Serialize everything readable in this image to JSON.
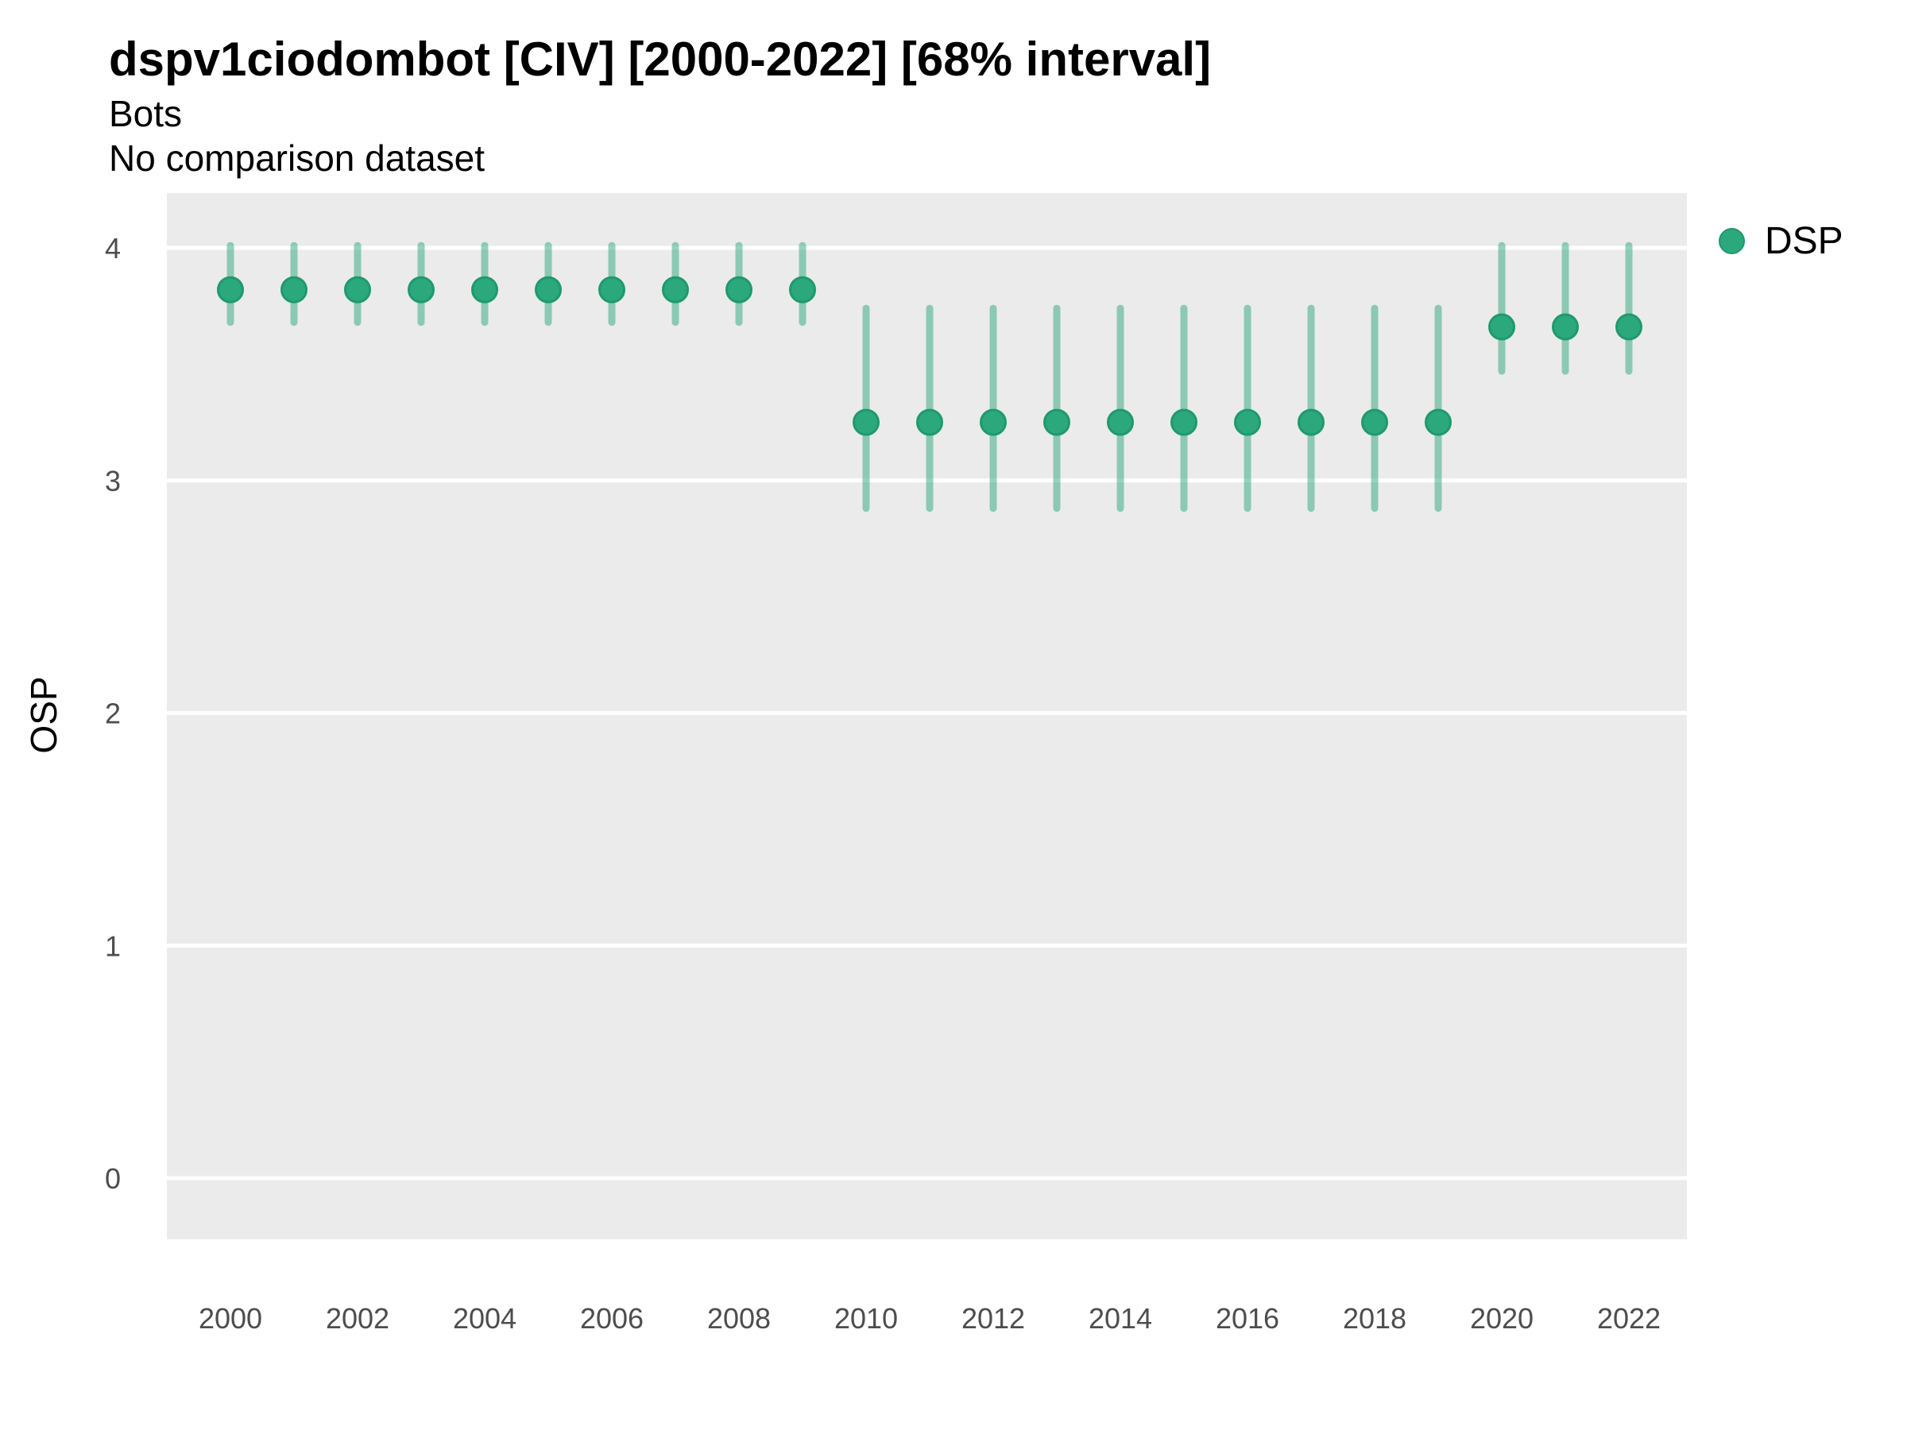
{
  "chart_data": {
    "type": "pointrange",
    "title": "dspv1ciodombot [CIV] [2000-2022] [68% interval]",
    "subtitle": "Bots",
    "comparison_note": "No comparison dataset",
    "xlabel": "",
    "ylabel": "OSP",
    "legend": {
      "label": "DSP",
      "position": "right"
    },
    "grid": "major-horizontal-only",
    "axis_ticks": "none",
    "ylim": [
      -0.28,
      4.24
    ],
    "yticks": [
      0,
      1,
      2,
      3,
      4
    ],
    "xticks": [
      2000,
      2002,
      2004,
      2006,
      2008,
      2010,
      2012,
      2014,
      2016,
      2018,
      2020,
      2022
    ],
    "x": [
      2000,
      2001,
      2002,
      2003,
      2004,
      2005,
      2006,
      2007,
      2008,
      2009,
      2010,
      2011,
      2012,
      2013,
      2014,
      2015,
      2016,
      2017,
      2018,
      2019,
      2020,
      2021,
      2022
    ],
    "series": [
      {
        "name": "DSP",
        "mid": [
          3.82,
          3.82,
          3.82,
          3.82,
          3.82,
          3.82,
          3.82,
          3.82,
          3.82,
          3.82,
          3.25,
          3.25,
          3.25,
          3.25,
          3.25,
          3.25,
          3.25,
          3.25,
          3.25,
          3.25,
          3.66,
          3.66,
          3.66
        ],
        "lo": [
          3.68,
          3.68,
          3.68,
          3.68,
          3.68,
          3.68,
          3.68,
          3.68,
          3.68,
          3.68,
          2.88,
          2.88,
          2.88,
          2.88,
          2.88,
          2.88,
          2.88,
          2.88,
          2.88,
          2.88,
          3.47,
          3.47,
          3.47
        ],
        "hi": [
          4.01,
          4.01,
          4.01,
          4.01,
          4.01,
          4.01,
          4.01,
          4.01,
          4.01,
          4.01,
          3.74,
          3.74,
          3.74,
          3.74,
          3.74,
          3.74,
          3.74,
          3.74,
          3.74,
          3.74,
          4.01,
          4.01,
          4.01
        ]
      }
    ],
    "colors": {
      "point": "#2ba87c",
      "point_border": "#1e9a6d",
      "interval": "rgba(43,168,124,0.5)",
      "panel_background": "#EBEBEB",
      "gridline": "#ffffff",
      "tick_label": "#4D4D4D",
      "text": "#000000"
    }
  }
}
